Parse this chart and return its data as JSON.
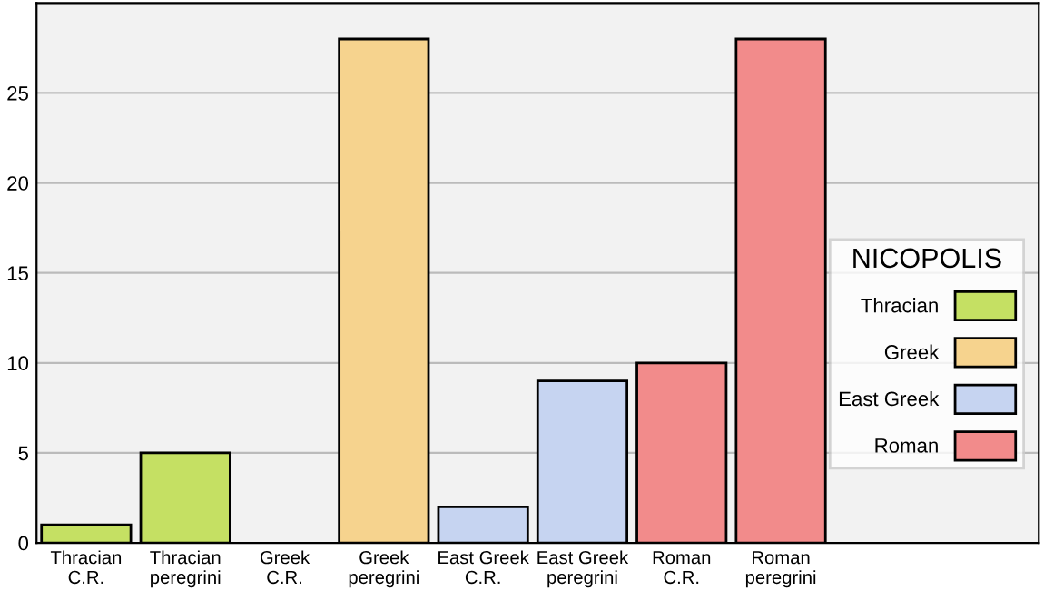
{
  "chart_data": {
    "type": "bar",
    "legend_title": "NICOPOLIS",
    "categories": [
      "Thracian\nC.R.",
      "Thracian\nperegrini",
      "Greek\nC.R.",
      "Greek\nperegrini",
      "East Greek\nC.R.",
      "East Greek\nperegrini",
      "Roman\nC.R.",
      "Roman\nperegrini"
    ],
    "series": [
      {
        "name": "Thracian",
        "color": "#c5e063",
        "values": [
          1,
          5,
          null,
          null,
          null,
          null,
          null,
          null
        ]
      },
      {
        "name": "Greek",
        "color": "#f6d38e",
        "values": [
          null,
          null,
          0,
          28,
          null,
          null,
          null,
          null
        ]
      },
      {
        "name": "East Greek",
        "color": "#c6d4f1",
        "values": [
          null,
          null,
          null,
          null,
          2,
          9,
          null,
          null
        ]
      },
      {
        "name": "Roman",
        "color": "#f28b8b",
        "values": [
          null,
          null,
          null,
          null,
          null,
          null,
          10,
          28
        ]
      }
    ],
    "ylim": [
      0,
      30
    ],
    "yticks": [
      0,
      5,
      10,
      15,
      20,
      25
    ],
    "grid": "y",
    "legend": "right"
  }
}
